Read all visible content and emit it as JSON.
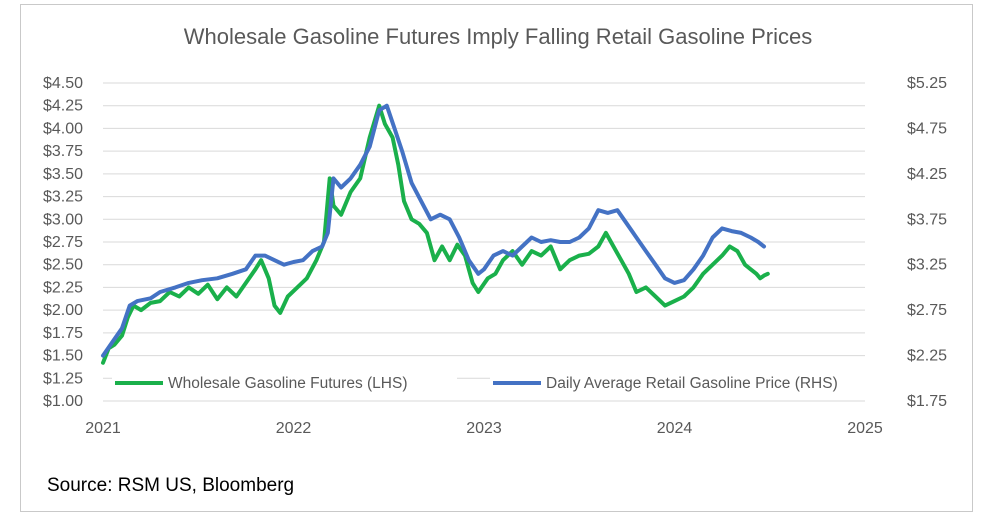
{
  "chart_data": {
    "type": "line",
    "title": "Wholesale Gasoline Futures Imply Falling Retail Gasoline Prices",
    "source": "Source: RSM US, Bloomberg",
    "x_ticks": [
      "2021",
      "2022",
      "2023",
      "2024",
      "2025"
    ],
    "xlim": [
      2021,
      2025
    ],
    "y_left": {
      "lim": [
        1.0,
        4.5
      ],
      "ticks": [
        "$1.00",
        "$1.25",
        "$1.50",
        "$1.75",
        "$2.00",
        "$2.25",
        "$2.50",
        "$2.75",
        "$3.00",
        "$3.25",
        "$3.50",
        "$3.75",
        "$4.00",
        "$4.25",
        "$4.50"
      ]
    },
    "y_right": {
      "lim": [
        1.75,
        5.25
      ],
      "ticks": [
        "$1.75",
        "$2.25",
        "$2.75",
        "$3.25",
        "$3.75",
        "$4.25",
        "$4.75",
        "$5.25"
      ]
    },
    "grid": "horizontal",
    "legend_position": "bottom-inside",
    "series": [
      {
        "name": "Wholesale Gasoline Futures (LHS)",
        "axis": "left",
        "color": "#1ab04b",
        "points": [
          [
            2021.0,
            1.42
          ],
          [
            2021.03,
            1.58
          ],
          [
            2021.06,
            1.62
          ],
          [
            2021.1,
            1.72
          ],
          [
            2021.13,
            1.92
          ],
          [
            2021.16,
            2.05
          ],
          [
            2021.2,
            2.0
          ],
          [
            2021.25,
            2.08
          ],
          [
            2021.3,
            2.1
          ],
          [
            2021.35,
            2.2
          ],
          [
            2021.4,
            2.15
          ],
          [
            2021.45,
            2.25
          ],
          [
            2021.5,
            2.18
          ],
          [
            2021.55,
            2.28
          ],
          [
            2021.6,
            2.12
          ],
          [
            2021.65,
            2.25
          ],
          [
            2021.7,
            2.15
          ],
          [
            2021.75,
            2.3
          ],
          [
            2021.8,
            2.45
          ],
          [
            2021.83,
            2.55
          ],
          [
            2021.87,
            2.35
          ],
          [
            2021.9,
            2.05
          ],
          [
            2021.93,
            1.97
          ],
          [
            2021.97,
            2.15
          ],
          [
            2022.02,
            2.25
          ],
          [
            2022.07,
            2.35
          ],
          [
            2022.12,
            2.55
          ],
          [
            2022.16,
            2.75
          ],
          [
            2022.19,
            3.45
          ],
          [
            2022.21,
            3.15
          ],
          [
            2022.25,
            3.05
          ],
          [
            2022.3,
            3.3
          ],
          [
            2022.35,
            3.45
          ],
          [
            2022.4,
            3.9
          ],
          [
            2022.45,
            4.25
          ],
          [
            2022.48,
            4.05
          ],
          [
            2022.52,
            3.9
          ],
          [
            2022.55,
            3.6
          ],
          [
            2022.58,
            3.2
          ],
          [
            2022.62,
            3.0
          ],
          [
            2022.66,
            2.95
          ],
          [
            2022.7,
            2.85
          ],
          [
            2022.74,
            2.55
          ],
          [
            2022.78,
            2.7
          ],
          [
            2022.82,
            2.55
          ],
          [
            2022.86,
            2.72
          ],
          [
            2022.9,
            2.6
          ],
          [
            2022.94,
            2.3
          ],
          [
            2022.97,
            2.2
          ],
          [
            2023.02,
            2.35
          ],
          [
            2023.06,
            2.4
          ],
          [
            2023.1,
            2.55
          ],
          [
            2023.15,
            2.65
          ],
          [
            2023.2,
            2.5
          ],
          [
            2023.25,
            2.65
          ],
          [
            2023.3,
            2.6
          ],
          [
            2023.35,
            2.7
          ],
          [
            2023.4,
            2.45
          ],
          [
            2023.45,
            2.55
          ],
          [
            2023.5,
            2.6
          ],
          [
            2023.55,
            2.62
          ],
          [
            2023.6,
            2.7
          ],
          [
            2023.64,
            2.85
          ],
          [
            2023.68,
            2.7
          ],
          [
            2023.72,
            2.55
          ],
          [
            2023.76,
            2.4
          ],
          [
            2023.8,
            2.2
          ],
          [
            2023.85,
            2.25
          ],
          [
            2023.9,
            2.15
          ],
          [
            2023.95,
            2.05
          ],
          [
            2024.0,
            2.1
          ],
          [
            2024.05,
            2.15
          ],
          [
            2024.1,
            2.25
          ],
          [
            2024.15,
            2.4
          ],
          [
            2024.2,
            2.5
          ],
          [
            2024.25,
            2.6
          ],
          [
            2024.29,
            2.7
          ],
          [
            2024.33,
            2.65
          ],
          [
            2024.37,
            2.5
          ],
          [
            2024.4,
            2.45
          ],
          [
            2024.43,
            2.4
          ],
          [
            2024.45,
            2.35
          ],
          [
            2024.47,
            2.38
          ],
          [
            2024.49,
            2.4
          ]
        ]
      },
      {
        "name": "Daily Average Retail Gasoline Price (RHS)",
        "axis": "right",
        "color": "#4472c4",
        "points": [
          [
            2021.0,
            2.25
          ],
          [
            2021.05,
            2.4
          ],
          [
            2021.1,
            2.55
          ],
          [
            2021.14,
            2.8
          ],
          [
            2021.18,
            2.85
          ],
          [
            2021.25,
            2.88
          ],
          [
            2021.3,
            2.95
          ],
          [
            2021.38,
            3.0
          ],
          [
            2021.45,
            3.05
          ],
          [
            2021.52,
            3.08
          ],
          [
            2021.6,
            3.1
          ],
          [
            2021.68,
            3.15
          ],
          [
            2021.75,
            3.2
          ],
          [
            2021.8,
            3.35
          ],
          [
            2021.85,
            3.35
          ],
          [
            2021.9,
            3.3
          ],
          [
            2021.95,
            3.25
          ],
          [
            2022.0,
            3.28
          ],
          [
            2022.05,
            3.3
          ],
          [
            2022.1,
            3.4
          ],
          [
            2022.15,
            3.45
          ],
          [
            2022.18,
            3.6
          ],
          [
            2022.21,
            4.2
          ],
          [
            2022.25,
            4.1
          ],
          [
            2022.3,
            4.2
          ],
          [
            2022.35,
            4.35
          ],
          [
            2022.4,
            4.55
          ],
          [
            2022.45,
            4.95
          ],
          [
            2022.49,
            5.0
          ],
          [
            2022.53,
            4.75
          ],
          [
            2022.57,
            4.5
          ],
          [
            2022.62,
            4.15
          ],
          [
            2022.67,
            3.95
          ],
          [
            2022.72,
            3.75
          ],
          [
            2022.77,
            3.8
          ],
          [
            2022.82,
            3.75
          ],
          [
            2022.87,
            3.55
          ],
          [
            2022.92,
            3.3
          ],
          [
            2022.97,
            3.15
          ],
          [
            2023.0,
            3.2
          ],
          [
            2023.05,
            3.35
          ],
          [
            2023.1,
            3.4
          ],
          [
            2023.15,
            3.35
          ],
          [
            2023.2,
            3.45
          ],
          [
            2023.25,
            3.55
          ],
          [
            2023.3,
            3.5
          ],
          [
            2023.35,
            3.52
          ],
          [
            2023.4,
            3.5
          ],
          [
            2023.45,
            3.5
          ],
          [
            2023.5,
            3.55
          ],
          [
            2023.55,
            3.65
          ],
          [
            2023.6,
            3.85
          ],
          [
            2023.65,
            3.82
          ],
          [
            2023.7,
            3.85
          ],
          [
            2023.75,
            3.7
          ],
          [
            2023.8,
            3.55
          ],
          [
            2023.85,
            3.4
          ],
          [
            2023.9,
            3.25
          ],
          [
            2023.95,
            3.1
          ],
          [
            2024.0,
            3.05
          ],
          [
            2024.05,
            3.08
          ],
          [
            2024.1,
            3.2
          ],
          [
            2024.15,
            3.35
          ],
          [
            2024.2,
            3.55
          ],
          [
            2024.25,
            3.65
          ],
          [
            2024.3,
            3.62
          ],
          [
            2024.35,
            3.6
          ],
          [
            2024.4,
            3.55
          ],
          [
            2024.44,
            3.5
          ],
          [
            2024.47,
            3.45
          ]
        ]
      }
    ]
  }
}
